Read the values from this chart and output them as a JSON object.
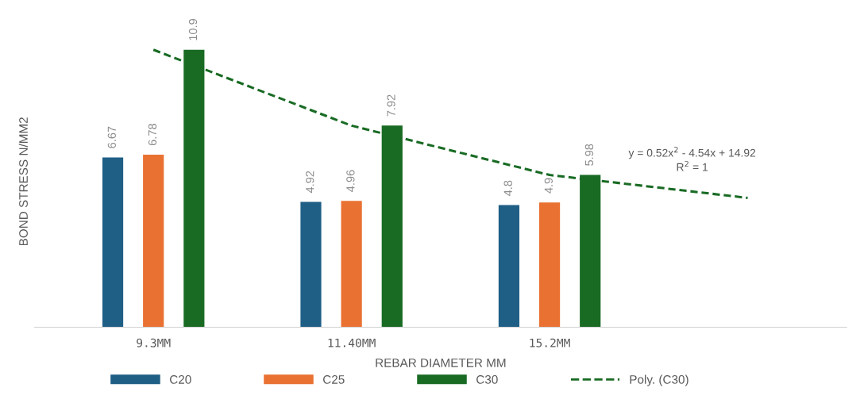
{
  "chart_data": {
    "type": "bar",
    "xlabel": "REBAR DIAMETER MM",
    "ylabel": "BOND STRESS N/MM2",
    "categories": [
      "9.3MM",
      "11.40MM",
      "15.2MM",
      null
    ],
    "series": [
      {
        "name": "C20",
        "color": "#1f5f86",
        "values": [
          6.67,
          4.92,
          4.8,
          null
        ],
        "value_labels": [
          "6.67",
          "4.92",
          "4.8",
          null
        ]
      },
      {
        "name": "C25",
        "color": "#e97132",
        "values": [
          6.78,
          4.96,
          4.9,
          null
        ],
        "value_labels": [
          "6.78",
          "4.96",
          "4.9",
          null
        ]
      },
      {
        "name": "C30",
        "color": "#196b24",
        "values": [
          10.9,
          7.92,
          5.98,
          null
        ],
        "value_labels": [
          "10.9",
          "7.92",
          "5.98",
          null
        ]
      },
      {
        "name": "Poly. (C30)",
        "type": "line",
        "line_style": "dashed",
        "color": "#196b24",
        "values": [
          10.9,
          7.92,
          5.98,
          5.08
        ]
      }
    ],
    "annotations": [
      "y = 0.52x$^{2}$ - 4.54x + 14.92",
      "R$^{2}$ = 1"
    ],
    "legend": "bottom",
    "grid": false
  }
}
